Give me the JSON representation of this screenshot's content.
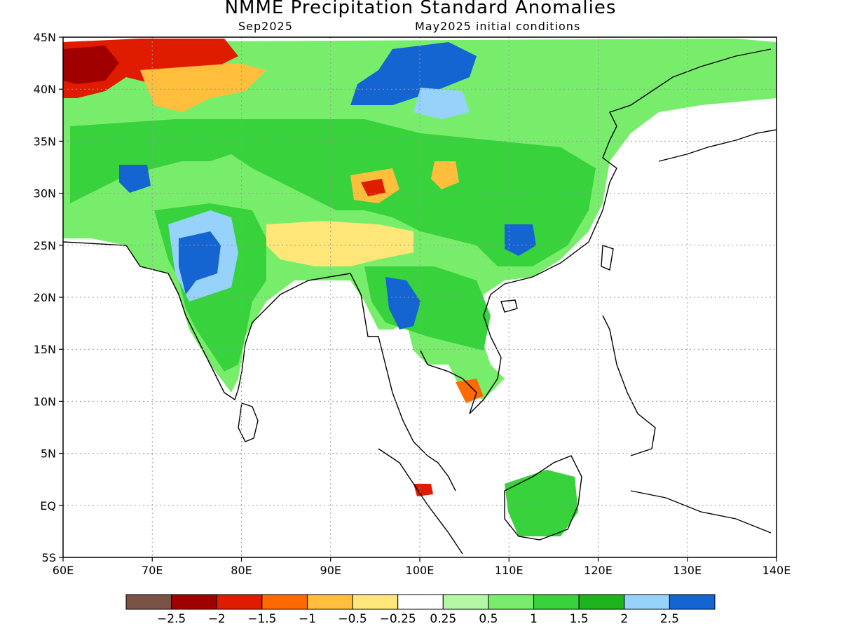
{
  "title": "NMME Precipitation Standard Anomalies",
  "subtitle_left": "Sep2025",
  "subtitle_right": "May2025 initial conditions",
  "map": {
    "lon_range": [
      60,
      140
    ],
    "lat_range": [
      -5,
      45
    ],
    "lat_ticks": [
      "45N",
      "40N",
      "35N",
      "30N",
      "25N",
      "20N",
      "15N",
      "10N",
      "5N",
      "EQ",
      "5S"
    ],
    "lon_ticks": [
      "60E",
      "70E",
      "80E",
      "90E",
      "100E",
      "110E",
      "120E",
      "130E",
      "140E"
    ]
  },
  "colorbar": {
    "colors": [
      "#7a5246",
      "#a00000",
      "#e01c00",
      "#ff6a00",
      "#ffbe3c",
      "#ffe678",
      "#ffffff",
      "#b4f7a4",
      "#78ed6c",
      "#37d23c",
      "#1eb41e",
      "#96d2fa",
      "#1464d2"
    ],
    "labels": [
      "-2.5",
      "-2",
      "-1.5",
      "-1",
      "-0.5",
      "-0.25",
      "0.25",
      "0.5",
      "1",
      "1.5",
      "2",
      "2.5"
    ]
  }
}
